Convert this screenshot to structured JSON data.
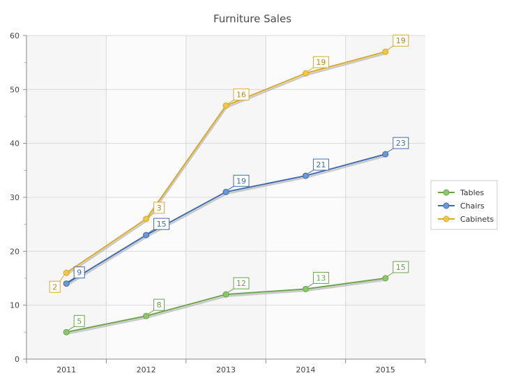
{
  "chart_data": {
    "type": "line",
    "title": "Furniture Sales",
    "xlabel": "",
    "ylabel": "",
    "categories": [
      "2011",
      "2012",
      "2013",
      "2014",
      "2015"
    ],
    "ylim": [
      0,
      60
    ],
    "yticks": [
      0,
      10,
      20,
      30,
      40,
      50,
      60
    ],
    "grid": true,
    "legend": "right",
    "series": [
      {
        "name": "Tables",
        "color": "#6aa34a",
        "marker": "#8cc769",
        "values": [
          5,
          8,
          12,
          13,
          15
        ],
        "labels": [
          "5",
          "8",
          "12",
          "13",
          "15"
        ]
      },
      {
        "name": "Chairs",
        "color": "#3f6bab",
        "marker": "#6e97d8",
        "values": [
          14,
          23,
          31,
          34,
          38
        ],
        "labels": [
          "9",
          "15",
          "19",
          "21",
          "23"
        ]
      },
      {
        "name": "Cabinets",
        "color": "#d9a92a",
        "marker": "#f2c744",
        "values": [
          16,
          26,
          47,
          53,
          57
        ],
        "labels": [
          "2",
          "3",
          "16",
          "19",
          "19"
        ]
      }
    ]
  }
}
